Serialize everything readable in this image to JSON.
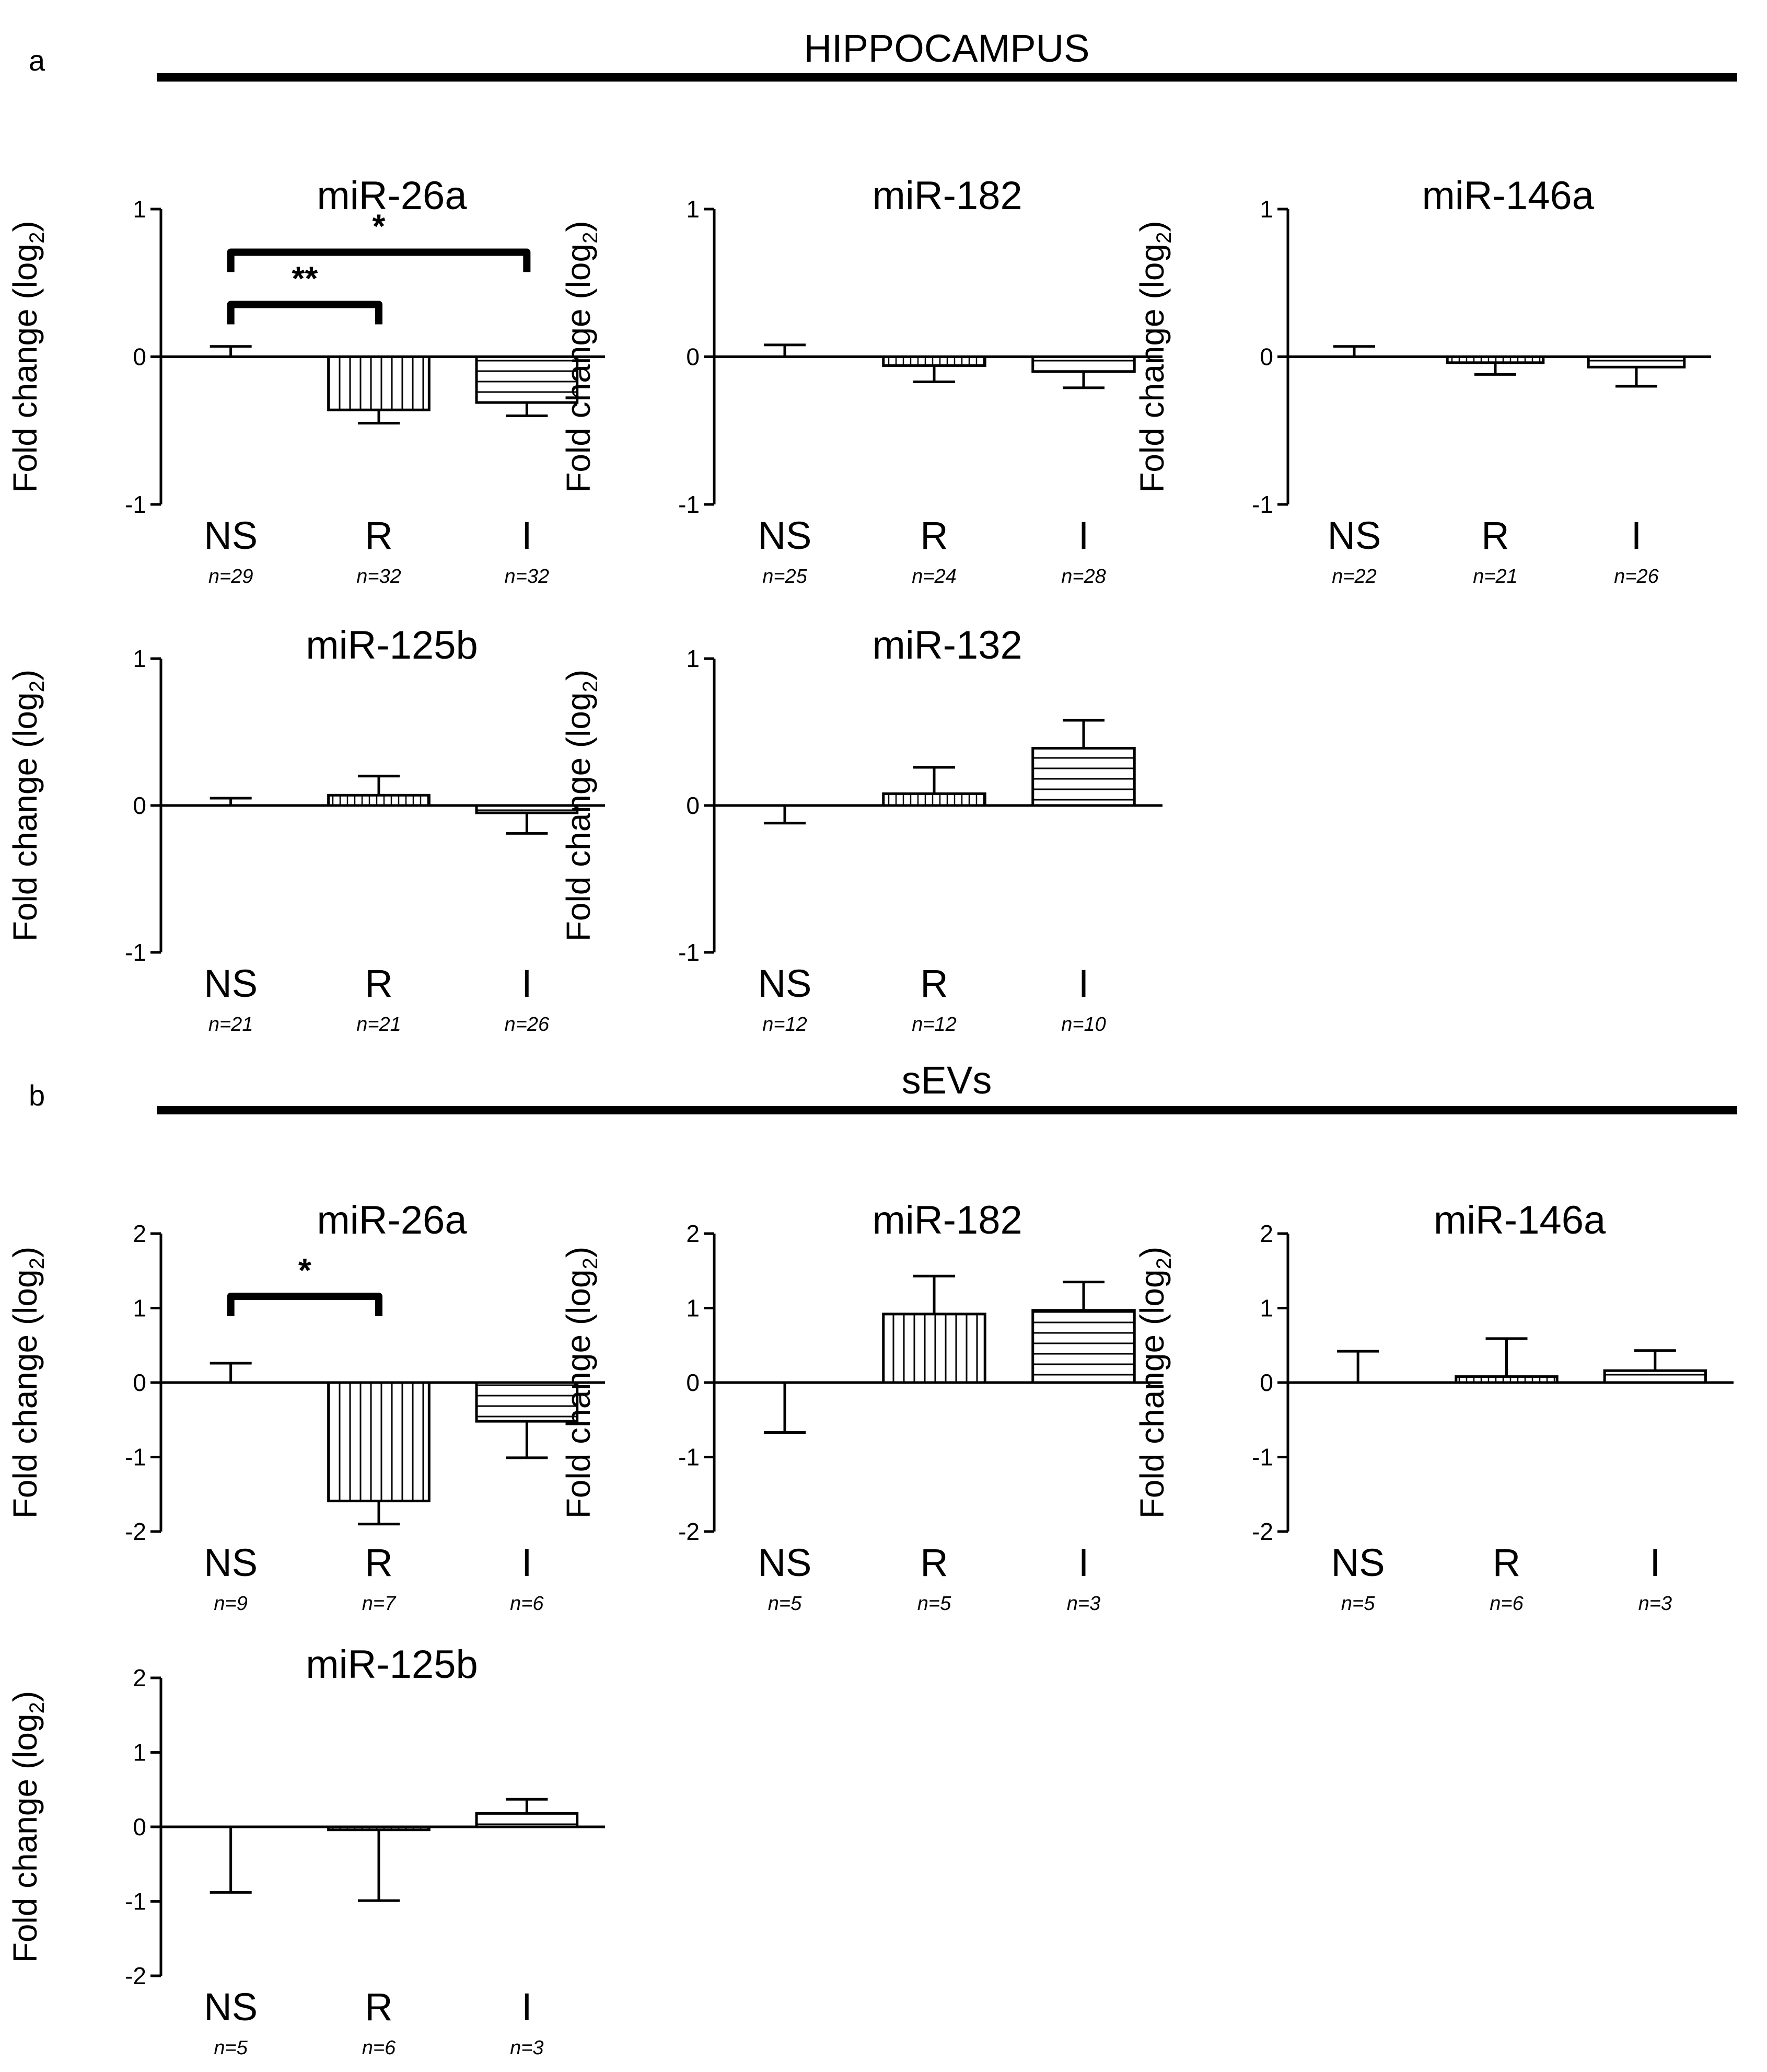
{
  "colors": {
    "ink": "#000000",
    "background": "#ffffff"
  },
  "panels": [
    {
      "letter": "a",
      "title": "HIPPOCAMPUS"
    },
    {
      "letter": "b",
      "title": "sEVs"
    }
  ],
  "chart_data": [
    {
      "panel": "a",
      "type": "bar",
      "title": "miR-26a",
      "ylabel": "Fold change (log2)",
      "ylim": [
        -1,
        1
      ],
      "yticks": [
        -1,
        0,
        1
      ],
      "categories": [
        "NS",
        "R",
        "I"
      ],
      "n_labels": [
        "n=29",
        "n=32",
        "n=32"
      ],
      "values": [
        0.0,
        -0.36,
        -0.31
      ],
      "errors": [
        0.07,
        0.09,
        0.09
      ],
      "patterns": [
        "none",
        "vertical",
        "horizontal"
      ],
      "significance": [
        {
          "from": 0,
          "to": 1,
          "label": "**"
        },
        {
          "from": 0,
          "to": 2,
          "label": "*"
        }
      ]
    },
    {
      "panel": "a",
      "type": "bar",
      "title": "miR-182",
      "ylabel": "Fold change (log2)",
      "ylim": [
        -1,
        1
      ],
      "yticks": [
        -1,
        0,
        1
      ],
      "categories": [
        "NS",
        "R",
        "I"
      ],
      "n_labels": [
        "n=25",
        "n=24",
        "n=28"
      ],
      "values": [
        0.0,
        -0.06,
        -0.1
      ],
      "errors": [
        0.08,
        0.11,
        0.11
      ],
      "patterns": [
        "none",
        "vertical-fine",
        "horizontal"
      ],
      "significance": []
    },
    {
      "panel": "a",
      "type": "bar",
      "title": "miR-146a",
      "ylabel": "Fold change (log2)",
      "ylim": [
        -1,
        1
      ],
      "yticks": [
        -1,
        0,
        1
      ],
      "categories": [
        "NS",
        "R",
        "I"
      ],
      "n_labels": [
        "n=22",
        "n=21",
        "n=26"
      ],
      "values": [
        0.0,
        -0.04,
        -0.07
      ],
      "errors": [
        0.07,
        0.08,
        0.13
      ],
      "patterns": [
        "none",
        "vertical-fine",
        "horizontal"
      ],
      "significance": []
    },
    {
      "panel": "a",
      "type": "bar",
      "title": "miR-125b",
      "ylabel": "Fold change (log2)",
      "ylim": [
        -1,
        1
      ],
      "yticks": [
        -1,
        0,
        1
      ],
      "categories": [
        "NS",
        "R",
        "I"
      ],
      "n_labels": [
        "n=21",
        "n=21",
        "n=26"
      ],
      "values": [
        0.0,
        0.07,
        -0.05
      ],
      "errors": [
        0.05,
        0.13,
        0.14
      ],
      "patterns": [
        "none",
        "vertical-fine",
        "horizontal"
      ],
      "significance": []
    },
    {
      "panel": "a",
      "type": "bar",
      "title": "miR-132",
      "ylabel": "Fold change (log2)",
      "ylim": [
        -1,
        1
      ],
      "yticks": [
        -1,
        0,
        1
      ],
      "categories": [
        "NS",
        "R",
        "I"
      ],
      "n_labels": [
        "n=12",
        "n=12",
        "n=10"
      ],
      "values": [
        0.0,
        0.08,
        0.39
      ],
      "errors": [
        0.12,
        0.18,
        0.19
      ],
      "patterns": [
        "none",
        "vertical-fine",
        "horizontal"
      ],
      "significance": []
    },
    {
      "panel": "b",
      "type": "bar",
      "title": "miR-26a",
      "ylabel": "Fold change (log2)",
      "ylim": [
        -2,
        2
      ],
      "yticks": [
        -2,
        -1,
        0,
        1,
        2
      ],
      "categories": [
        "NS",
        "R",
        "I"
      ],
      "n_labels": [
        "n=9",
        "n=7",
        "n=6"
      ],
      "values": [
        0.0,
        -1.59,
        -0.52
      ],
      "errors": [
        0.26,
        0.31,
        0.49
      ],
      "patterns": [
        "none",
        "vertical",
        "horizontal"
      ],
      "significance": [
        {
          "from": 0,
          "to": 1,
          "label": "*"
        }
      ]
    },
    {
      "panel": "b",
      "type": "bar",
      "title": "miR-182",
      "ylabel": "Fold change (log2)",
      "ylim": [
        -2,
        2
      ],
      "yticks": [
        -2,
        -1,
        0,
        1,
        2
      ],
      "categories": [
        "NS",
        "R",
        "I"
      ],
      "n_labels": [
        "n=5",
        "n=5",
        "n=3"
      ],
      "values": [
        0.0,
        0.92,
        0.97
      ],
      "errors": [
        0.67,
        0.51,
        0.38
      ],
      "patterns": [
        "none",
        "vertical",
        "horizontal"
      ],
      "significance": []
    },
    {
      "panel": "b",
      "type": "bar",
      "title": "miR-146a",
      "ylabel": "Fold change (log2)",
      "ylim": [
        -2,
        2
      ],
      "yticks": [
        -2,
        -1,
        0,
        1,
        2
      ],
      "categories": [
        "NS",
        "R",
        "I"
      ],
      "n_labels": [
        "n=5",
        "n=6",
        "n=3"
      ],
      "values": [
        0.0,
        0.08,
        0.16
      ],
      "errors": [
        0.42,
        0.51,
        0.27
      ],
      "patterns": [
        "none",
        "vertical-fine",
        "horizontal"
      ],
      "significance": []
    },
    {
      "panel": "b",
      "type": "bar",
      "title": "miR-125b",
      "ylabel": "Fold change (log2)",
      "ylim": [
        -2,
        2
      ],
      "yticks": [
        -2,
        -1,
        0,
        1,
        2
      ],
      "categories": [
        "NS",
        "R",
        "I"
      ],
      "n_labels": [
        "n=5",
        "n=6",
        "n=3"
      ],
      "values": [
        0.0,
        -0.04,
        0.18
      ],
      "errors": [
        0.88,
        0.95,
        0.19
      ],
      "patterns": [
        "none",
        "vertical-fine",
        "horizontal"
      ],
      "significance": []
    }
  ]
}
